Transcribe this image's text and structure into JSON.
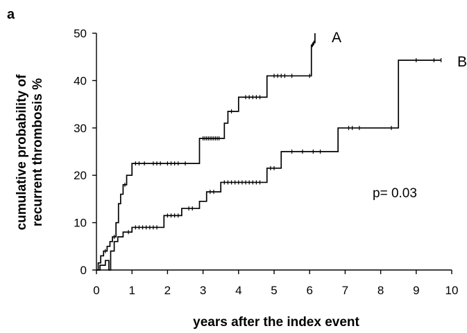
{
  "panel_label": "a",
  "chart_data": {
    "type": "line",
    "step": true,
    "xlabel": "years after the index event",
    "ylabel_lines": [
      "cumulative probability of",
      "recurrent thrombosis %"
    ],
    "xlim": [
      0,
      10
    ],
    "ylim": [
      0,
      50
    ],
    "xticks": [
      0,
      1,
      2,
      3,
      4,
      5,
      6,
      7,
      8,
      9,
      10
    ],
    "yticks": [
      0,
      10,
      20,
      30,
      40,
      50
    ],
    "grid": false,
    "annotation": "p= 0.03",
    "series": [
      {
        "name": "A",
        "x": [
          0,
          0.05,
          0.12,
          0.2,
          0.3,
          0.38,
          0.45,
          0.55,
          0.62,
          0.68,
          0.75,
          0.85,
          1.0,
          1.5,
          2.9,
          3.6,
          3.7,
          4.0,
          4.8,
          6.05,
          6.1,
          6.15
        ],
        "y": [
          0,
          1.5,
          3,
          4,
          5,
          6,
          7,
          10,
          14,
          16,
          18,
          20,
          22.5,
          22.5,
          27.8,
          31,
          33.5,
          36.5,
          41,
          47.5,
          48,
          50
        ],
        "censor_x": [
          0.25,
          0.5,
          0.8,
          1.1,
          1.2,
          1.35,
          1.6,
          1.7,
          1.8,
          2.0,
          2.1,
          2.2,
          2.3,
          2.5,
          3.0,
          3.05,
          3.1,
          3.15,
          3.2,
          3.25,
          3.3,
          3.35,
          3.4,
          3.45,
          3.8,
          4.2,
          4.3,
          4.4,
          4.5,
          4.6,
          5.0,
          5.1,
          5.2,
          5.3,
          5.5,
          6.0,
          6.08,
          6.12
        ]
      },
      {
        "name": "B",
        "x": [
          0,
          0.1,
          0.25,
          0.35,
          0.4,
          0.5,
          0.6,
          0.75,
          1.0,
          1.9,
          2.4,
          2.9,
          3.1,
          3.5,
          4.8,
          5.2,
          6.8,
          8.5,
          9.7
        ],
        "y": [
          0,
          1,
          2,
          0,
          4,
          6,
          7,
          8,
          9,
          11.5,
          13,
          14.5,
          16.5,
          18.5,
          21.5,
          25,
          30,
          44.3,
          44.3
        ],
        "censor_x": [
          0.9,
          1.1,
          1.2,
          1.3,
          1.4,
          1.5,
          1.6,
          1.7,
          2.0,
          2.1,
          2.2,
          2.3,
          2.6,
          2.7,
          3.2,
          3.3,
          3.6,
          3.7,
          3.8,
          3.9,
          4.0,
          4.1,
          4.2,
          4.3,
          4.4,
          4.5,
          4.6,
          4.9,
          5.0,
          5.5,
          5.8,
          6.1,
          6.3,
          7.1,
          7.2,
          7.4,
          8.3,
          9.0,
          9.5,
          9.7
        ]
      }
    ]
  }
}
